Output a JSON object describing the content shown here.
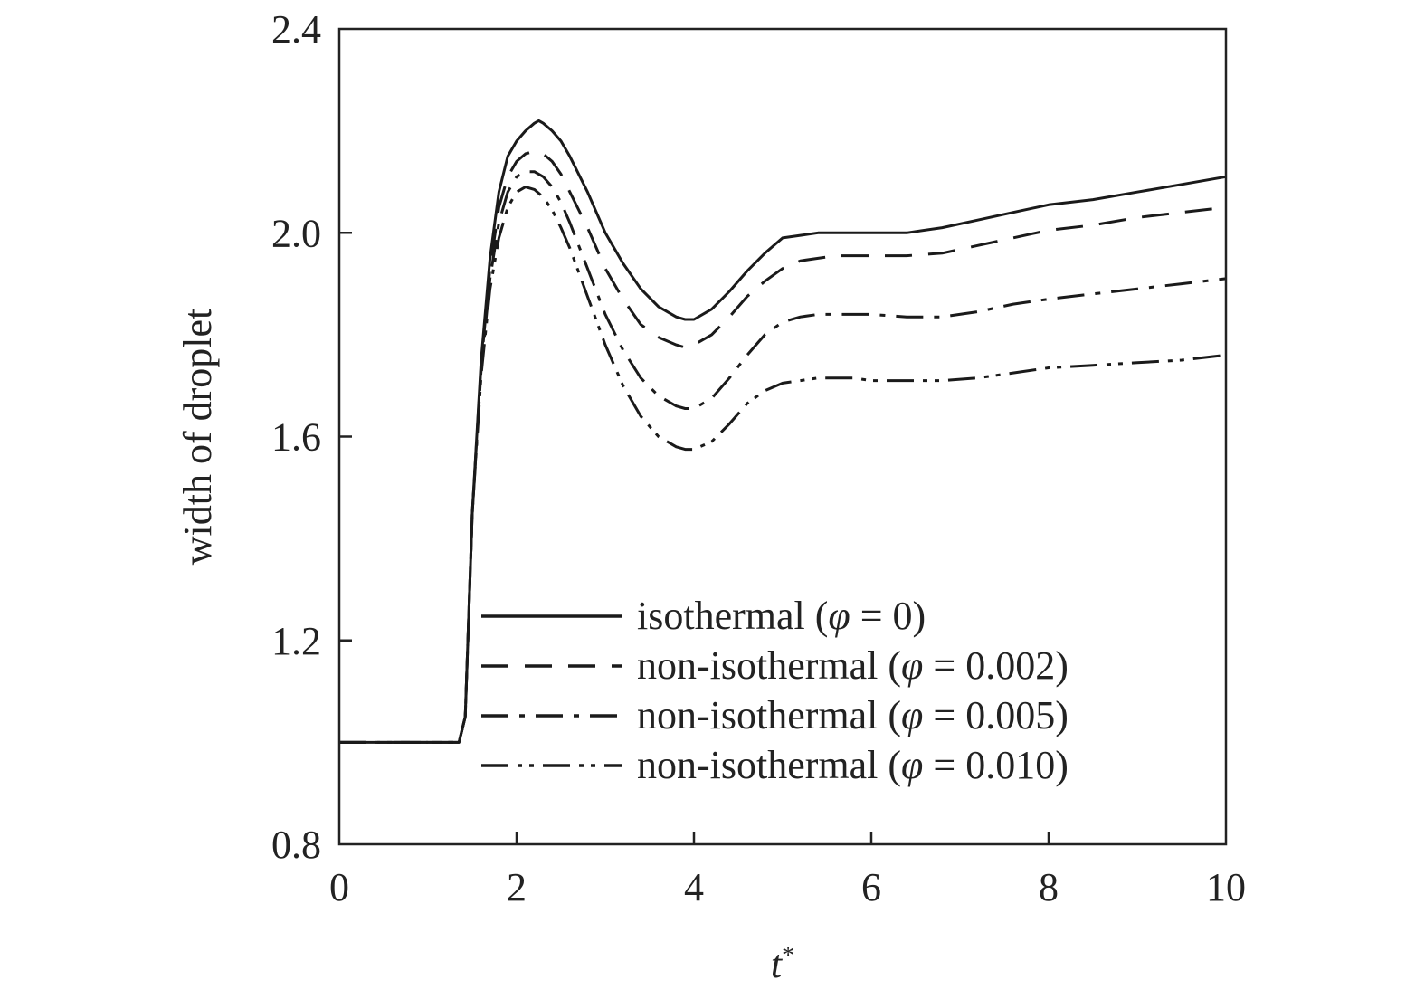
{
  "chart_data": {
    "type": "line",
    "xlabel": "t",
    "xlabel_sup": "*",
    "ylabel": "width of droplet",
    "xlim": [
      0,
      10
    ],
    "ylim": [
      0.8,
      2.4
    ],
    "xticks": [
      0,
      2,
      4,
      6,
      8,
      10
    ],
    "xtick_labels": [
      "0",
      "2",
      "4",
      "6",
      "8",
      "10"
    ],
    "yticks": [
      0.8,
      1.2,
      1.6,
      2.0,
      2.4
    ],
    "ytick_labels": [
      "0.8",
      "1.2",
      "1.6",
      "2.0",
      "2.4"
    ],
    "grid": false,
    "legend_position": "bottom-right",
    "series": [
      {
        "name": "isothermal (φ = 0)",
        "legend": {
          "prefix": "isothermal (",
          "symbol": "φ",
          "suffix": " = 0)"
        },
        "dash": "solid",
        "x": [
          0,
          1.35,
          1.42,
          1.5,
          1.6,
          1.7,
          1.8,
          1.9,
          2.0,
          2.1,
          2.2,
          2.25,
          2.3,
          2.4,
          2.5,
          2.6,
          2.8,
          3.0,
          3.2,
          3.4,
          3.6,
          3.8,
          3.9,
          4.0,
          4.2,
          4.4,
          4.6,
          4.8,
          5.0,
          5.2,
          5.4,
          5.6,
          5.8,
          6.0,
          6.4,
          6.8,
          7.2,
          7.6,
          8.0,
          8.5,
          9.0,
          9.5,
          10.0
        ],
        "y": [
          1.0,
          1.0,
          1.05,
          1.45,
          1.75,
          1.95,
          2.08,
          2.15,
          2.18,
          2.2,
          2.215,
          2.22,
          2.215,
          2.2,
          2.18,
          2.15,
          2.08,
          2.0,
          1.94,
          1.89,
          1.855,
          1.835,
          1.83,
          1.83,
          1.85,
          1.885,
          1.925,
          1.96,
          1.99,
          1.995,
          2.0,
          2.0,
          2.0,
          2.0,
          2.0,
          2.01,
          2.025,
          2.04,
          2.055,
          2.065,
          2.08,
          2.095,
          2.11
        ]
      },
      {
        "name": "non-isothermal (φ = 0.002)",
        "legend": {
          "prefix": "non-isothermal (",
          "symbol": "φ",
          "suffix": " = 0.002)"
        },
        "dash": "dashed",
        "x": [
          0,
          1.35,
          1.42,
          1.5,
          1.6,
          1.7,
          1.8,
          1.9,
          2.0,
          2.1,
          2.2,
          2.3,
          2.4,
          2.5,
          2.6,
          2.8,
          3.0,
          3.2,
          3.4,
          3.6,
          3.8,
          3.9,
          4.0,
          4.2,
          4.4,
          4.6,
          4.8,
          5.0,
          5.2,
          5.4,
          5.6,
          5.8,
          6.0,
          6.4,
          6.8,
          7.2,
          7.6,
          8.0,
          8.5,
          9.0,
          9.5,
          10.0
        ],
        "y": [
          1.0,
          1.0,
          1.05,
          1.45,
          1.74,
          1.93,
          2.05,
          2.11,
          2.14,
          2.155,
          2.16,
          2.155,
          2.14,
          2.115,
          2.08,
          2.01,
          1.93,
          1.87,
          1.82,
          1.795,
          1.78,
          1.775,
          1.78,
          1.8,
          1.835,
          1.875,
          1.905,
          1.93,
          1.945,
          1.95,
          1.955,
          1.955,
          1.955,
          1.955,
          1.96,
          1.975,
          1.99,
          2.005,
          2.015,
          2.03,
          2.04,
          2.05
        ]
      },
      {
        "name": "non-isothermal (φ = 0.005)",
        "legend": {
          "prefix": "non-isothermal (",
          "symbol": "φ",
          "suffix": " = 0.005)"
        },
        "dash": "dashdot",
        "x": [
          0,
          1.35,
          1.42,
          1.5,
          1.6,
          1.7,
          1.8,
          1.9,
          2.0,
          2.1,
          2.2,
          2.3,
          2.4,
          2.5,
          2.6,
          2.8,
          3.0,
          3.2,
          3.4,
          3.6,
          3.8,
          3.9,
          4.0,
          4.2,
          4.4,
          4.6,
          4.8,
          5.0,
          5.2,
          5.4,
          5.6,
          5.8,
          6.0,
          6.4,
          6.8,
          7.2,
          7.6,
          8.0,
          8.5,
          9.0,
          9.5,
          10.0
        ],
        "y": [
          1.0,
          1.0,
          1.05,
          1.45,
          1.73,
          1.91,
          2.02,
          2.08,
          2.11,
          2.12,
          2.12,
          2.11,
          2.09,
          2.06,
          2.02,
          1.93,
          1.84,
          1.77,
          1.715,
          1.68,
          1.66,
          1.655,
          1.655,
          1.675,
          1.715,
          1.76,
          1.8,
          1.825,
          1.835,
          1.84,
          1.84,
          1.84,
          1.84,
          1.835,
          1.835,
          1.845,
          1.86,
          1.87,
          1.88,
          1.89,
          1.9,
          1.91
        ]
      },
      {
        "name": "non-isothermal (φ = 0.010)",
        "legend": {
          "prefix": "non-isothermal (",
          "symbol": "φ",
          "suffix": " = 0.010)"
        },
        "dash": "dashdotdot",
        "x": [
          0,
          1.35,
          1.42,
          1.5,
          1.6,
          1.7,
          1.8,
          1.9,
          2.0,
          2.1,
          2.2,
          2.3,
          2.4,
          2.5,
          2.6,
          2.8,
          3.0,
          3.2,
          3.4,
          3.6,
          3.8,
          3.9,
          4.0,
          4.2,
          4.4,
          4.6,
          4.8,
          5.0,
          5.2,
          5.4,
          5.6,
          5.8,
          6.0,
          6.4,
          6.8,
          7.2,
          7.6,
          8.0,
          8.5,
          9.0,
          9.5,
          10.0
        ],
        "y": [
          1.0,
          1.0,
          1.05,
          1.45,
          1.72,
          1.89,
          1.99,
          2.05,
          2.08,
          2.09,
          2.085,
          2.07,
          2.045,
          2.01,
          1.97,
          1.875,
          1.78,
          1.7,
          1.64,
          1.6,
          1.58,
          1.575,
          1.575,
          1.59,
          1.625,
          1.665,
          1.69,
          1.705,
          1.71,
          1.715,
          1.715,
          1.715,
          1.71,
          1.71,
          1.71,
          1.715,
          1.725,
          1.735,
          1.74,
          1.745,
          1.75,
          1.76
        ]
      }
    ]
  }
}
